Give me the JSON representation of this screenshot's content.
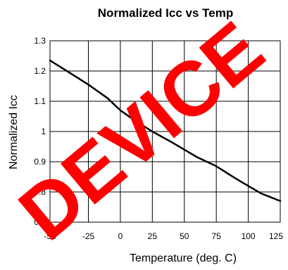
{
  "chart_data": {
    "type": "line",
    "title": "Normalized Icc vs Temp",
    "xlabel": "Temperature (deg. C)",
    "ylabel": "Normalized Icc",
    "xlim": [
      -55,
      125
    ],
    "ylim": [
      0.7,
      1.3
    ],
    "x_ticks": [
      "-55",
      "-25",
      "0",
      "25",
      "50",
      "75",
      "100",
      "125"
    ],
    "y_ticks": [
      "1.3",
      "1.2",
      "1.1",
      "1",
      "0.9",
      "0.8",
      "0.7"
    ],
    "grid": true,
    "series": [
      {
        "x": [
          -55,
          -40,
          -25,
          -10,
          0,
          10,
          25,
          40,
          50,
          60,
          75,
          90,
          100,
          110,
          125
        ],
        "y": [
          1.235,
          1.195,
          1.155,
          1.11,
          1.07,
          1.04,
          1.0,
          0.965,
          0.94,
          0.915,
          0.885,
          0.845,
          0.82,
          0.795,
          0.77
        ]
      }
    ],
    "line_color": "#000000"
  },
  "watermark": {
    "text": "DEVICE",
    "color": "#ff0000"
  }
}
